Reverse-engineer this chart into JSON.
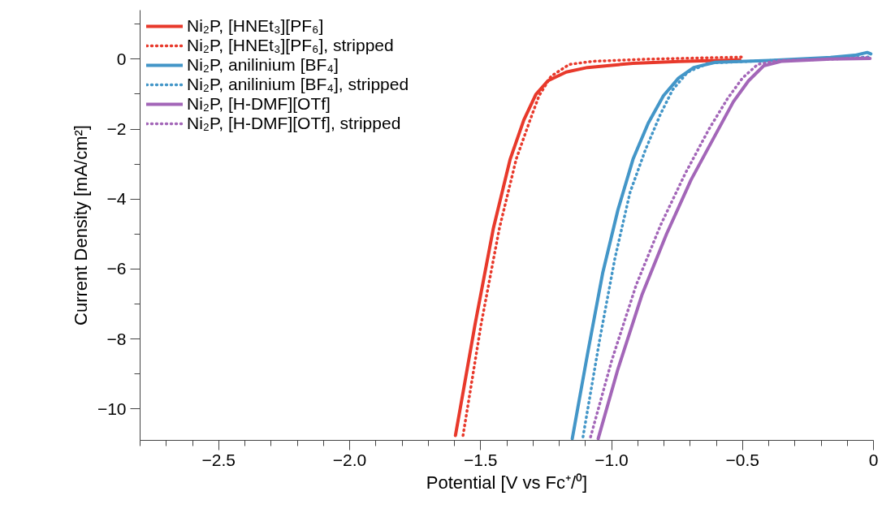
{
  "chart_data": {
    "type": "line",
    "xlabel": "Potential [V vs Fc⁺/⁰]",
    "ylabel": "Current Density [mA/cm²]",
    "xlim": [
      -2.8,
      0
    ],
    "ylim": [
      -10.9,
      1.4
    ],
    "xticks": [
      {
        "value": -2.8,
        "label": null
      },
      {
        "value": -2.7,
        "label": null
      },
      {
        "value": -2.6,
        "label": null
      },
      {
        "value": -2.5,
        "label": "−2.5"
      },
      {
        "value": -2.4,
        "label": null
      },
      {
        "value": -2.3,
        "label": null
      },
      {
        "value": -2.2,
        "label": null
      },
      {
        "value": -2.1,
        "label": null
      },
      {
        "value": -2.0,
        "label": "−2.0"
      },
      {
        "value": -1.9,
        "label": null
      },
      {
        "value": -1.8,
        "label": null
      },
      {
        "value": -1.7,
        "label": null
      },
      {
        "value": -1.6,
        "label": null
      },
      {
        "value": -1.5,
        "label": "−1.5"
      },
      {
        "value": -1.4,
        "label": null
      },
      {
        "value": -1.3,
        "label": null
      },
      {
        "value": -1.2,
        "label": null
      },
      {
        "value": -1.1,
        "label": null
      },
      {
        "value": -1.0,
        "label": "−1.0"
      },
      {
        "value": -0.9,
        "label": null
      },
      {
        "value": -0.8,
        "label": null
      },
      {
        "value": -0.7,
        "label": null
      },
      {
        "value": -0.6,
        "label": null
      },
      {
        "value": -0.5,
        "label": "−0.5"
      },
      {
        "value": -0.4,
        "label": null
      },
      {
        "value": -0.3,
        "label": null
      },
      {
        "value": -0.2,
        "label": null
      },
      {
        "value": -0.1,
        "label": null
      },
      0
    ],
    "yticks": [
      {
        "value": -10,
        "label": "−10"
      },
      {
        "value": -9,
        "label": null
      },
      {
        "value": -8,
        "label": "−8"
      },
      {
        "value": -7,
        "label": null
      },
      {
        "value": -6,
        "label": "−6"
      },
      {
        "value": -5,
        "label": null
      },
      {
        "value": -4,
        "label": "−4"
      },
      {
        "value": -3,
        "label": null
      },
      {
        "value": -2,
        "label": "−2"
      },
      {
        "value": -1,
        "label": null
      },
      0,
      {
        "value": 1,
        "label": null
      }
    ],
    "grid": false,
    "legend": "top left",
    "marker": "none",
    "series": [
      {
        "name": "Ni₂P, [HNEt₃][PF₆]",
        "color": "#e8392b",
        "line_style": "solid",
        "x": [
          -1.596,
          -1.521,
          -1.451,
          -1.387,
          -1.335,
          -1.289,
          -1.243,
          -1.173,
          -1.092,
          -0.918,
          -0.744,
          -0.51
        ],
        "values": [
          -10.76,
          -7.58,
          -4.83,
          -2.86,
          -1.74,
          -1.01,
          -0.62,
          -0.37,
          -0.24,
          -0.12,
          -0.07,
          -0.02
        ]
      },
      {
        "name": "Ni₂P, [HNEt₃][PF₆], stripped",
        "color": "#e8392b",
        "line_style": "dotted",
        "x": [
          -1.567,
          -1.498,
          -1.428,
          -1.364,
          -1.311,
          -1.277,
          -1.231,
          -1.161,
          -1.068,
          -0.86,
          -0.5
        ],
        "values": [
          -10.76,
          -7.58,
          -4.83,
          -2.86,
          -1.74,
          -1.05,
          -0.49,
          -0.15,
          -0.06,
          0.0,
          0.06
        ]
      },
      {
        "name": "Ni₂P, anilinium [BF₄]",
        "color": "#4396c8",
        "line_style": "solid",
        "x": [
          -1.15,
          -1.092,
          -1.034,
          -0.976,
          -0.918,
          -0.86,
          -0.802,
          -0.744,
          -0.686,
          -0.604,
          -0.396,
          -0.164,
          -0.071,
          -0.024,
          -0.01
        ],
        "values": [
          -10.85,
          -8.44,
          -6.12,
          -4.32,
          -2.86,
          -1.83,
          -1.05,
          -0.54,
          -0.24,
          -0.09,
          -0.04,
          0.05,
          0.11,
          0.19,
          0.15
        ]
      },
      {
        "name": "Ni₂P, anilinium [BF₄], stripped",
        "color": "#4396c8",
        "line_style": "dotted",
        "x": [
          -1.109,
          -1.045,
          -0.987,
          -0.929,
          -0.871,
          -0.813,
          -0.767,
          -0.709,
          -0.628,
          -0.396,
          -0.164,
          -0.013
        ],
        "values": [
          -10.8,
          -8.01,
          -5.69,
          -3.8,
          -2.6,
          -1.57,
          -0.88,
          -0.37,
          -0.11,
          -0.04,
          0.02,
          0.06
        ]
      },
      {
        "name": "Ni₂P, [H-DMF][OTf]",
        "color": "#a366b8",
        "line_style": "solid",
        "x": [
          -1.051,
          -0.976,
          -0.883,
          -0.79,
          -0.697,
          -0.604,
          -0.535,
          -0.477,
          -0.419,
          -0.349,
          -0.164,
          -0.013
        ],
        "values": [
          -10.85,
          -8.87,
          -6.72,
          -5.0,
          -3.46,
          -2.17,
          -1.22,
          -0.62,
          -0.19,
          -0.06,
          0.0,
          0.02
        ]
      },
      {
        "name": "Ni₂P, [H-DMF][OTf], stripped",
        "color": "#a366b8",
        "line_style": "dotted",
        "x": [
          -1.08,
          -0.999,
          -0.906,
          -0.813,
          -0.72,
          -0.628,
          -0.558,
          -0.5,
          -0.442,
          -0.361,
          -0.164,
          -0.013
        ],
        "values": [
          -10.8,
          -8.61,
          -6.46,
          -4.75,
          -3.29,
          -2.0,
          -1.14,
          -0.54,
          -0.15,
          -0.04,
          0.0,
          0.05
        ]
      }
    ]
  }
}
